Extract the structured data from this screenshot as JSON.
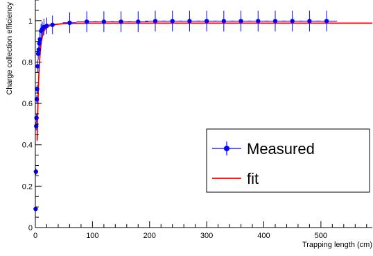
{
  "chart_data": {
    "type": "scatter",
    "xlabel": "Trapping length (cm)",
    "ylabel": "Charge collection efficiency",
    "xlim": [
      0,
      590
    ],
    "ylim": [
      0,
      1.1
    ],
    "x_ticks": [
      0,
      100,
      200,
      300,
      400,
      500
    ],
    "y_ticks": [
      0,
      0.2,
      0.4,
      0.6,
      0.8,
      1
    ],
    "x_tick_labels": [
      "0",
      "100",
      "200",
      "300",
      "400",
      "500"
    ],
    "y_tick_labels": [
      "0",
      "0.2",
      "0.4",
      "0.6",
      "0.8",
      "1"
    ],
    "grid": false,
    "legend_position": "right-middle",
    "series": [
      {
        "name": "Measured",
        "kind": "points-with-error-bars",
        "color": "#0000ff",
        "points": [
          {
            "x": 0.5,
            "y": 0.09,
            "xerr": 0.5,
            "yerr": 0.01
          },
          {
            "x": 1,
            "y": 0.27,
            "xerr": 0.5,
            "yerr": 0.015
          },
          {
            "x": 1.5,
            "y": 0.49,
            "xerr": 0.5,
            "yerr": 0.02
          },
          {
            "x": 2,
            "y": 0.53,
            "xerr": 0.5,
            "yerr": 0.02
          },
          {
            "x": 2.5,
            "y": 0.62,
            "xerr": 0.5,
            "yerr": 0.02
          },
          {
            "x": 3,
            "y": 0.67,
            "xerr": 0.5,
            "yerr": 0.02
          },
          {
            "x": 4,
            "y": 0.78,
            "xerr": 1,
            "yerr": 0.03
          },
          {
            "x": 5,
            "y": 0.84,
            "xerr": 1,
            "yerr": 0.03
          },
          {
            "x": 6,
            "y": 0.86,
            "xerr": 1,
            "yerr": 0.03
          },
          {
            "x": 7,
            "y": 0.89,
            "xerr": 1,
            "yerr": 0.03
          },
          {
            "x": 8,
            "y": 0.91,
            "xerr": 1,
            "yerr": 0.03
          },
          {
            "x": 10,
            "y": 0.95,
            "xerr": 2,
            "yerr": 0.035
          },
          {
            "x": 12,
            "y": 0.96,
            "xerr": 2,
            "yerr": 0.035
          },
          {
            "x": 15,
            "y": 0.97,
            "xerr": 3,
            "yerr": 0.04
          },
          {
            "x": 20,
            "y": 0.975,
            "xerr": 4,
            "yerr": 0.04
          },
          {
            "x": 30,
            "y": 0.98,
            "xerr": 6,
            "yerr": 0.045
          },
          {
            "x": 60,
            "y": 0.99,
            "xerr": 12,
            "yerr": 0.05
          },
          {
            "x": 90,
            "y": 0.995,
            "xerr": 18,
            "yerr": 0.05
          },
          {
            "x": 120,
            "y": 0.995,
            "xerr": 18,
            "yerr": 0.05
          },
          {
            "x": 150,
            "y": 0.995,
            "xerr": 18,
            "yerr": 0.05
          },
          {
            "x": 180,
            "y": 0.995,
            "xerr": 18,
            "yerr": 0.05
          },
          {
            "x": 210,
            "y": 0.998,
            "xerr": 18,
            "yerr": 0.05
          },
          {
            "x": 240,
            "y": 0.998,
            "xerr": 18,
            "yerr": 0.05
          },
          {
            "x": 270,
            "y": 0.998,
            "xerr": 18,
            "yerr": 0.05
          },
          {
            "x": 300,
            "y": 0.998,
            "xerr": 18,
            "yerr": 0.05
          },
          {
            "x": 330,
            "y": 0.998,
            "xerr": 18,
            "yerr": 0.05
          },
          {
            "x": 360,
            "y": 0.998,
            "xerr": 18,
            "yerr": 0.05
          },
          {
            "x": 390,
            "y": 0.998,
            "xerr": 18,
            "yerr": 0.05
          },
          {
            "x": 420,
            "y": 0.998,
            "xerr": 18,
            "yerr": 0.05
          },
          {
            "x": 450,
            "y": 0.998,
            "xerr": 18,
            "yerr": 0.05
          },
          {
            "x": 480,
            "y": 0.998,
            "xerr": 18,
            "yerr": 0.05
          },
          {
            "x": 510,
            "y": 0.998,
            "xerr": 18,
            "yerr": 0.05
          }
        ]
      },
      {
        "name": "fit",
        "kind": "line",
        "color": "#ff0000",
        "curve": [
          [
            3.2,
            0.42
          ],
          [
            4,
            0.55
          ],
          [
            5,
            0.65
          ],
          [
            6,
            0.73
          ],
          [
            7,
            0.79
          ],
          [
            8,
            0.83
          ],
          [
            10,
            0.89
          ],
          [
            12,
            0.92
          ],
          [
            15,
            0.95
          ],
          [
            20,
            0.97
          ],
          [
            30,
            0.98
          ],
          [
            45,
            0.985
          ],
          [
            60,
            0.987
          ],
          [
            100,
            0.988
          ],
          [
            200,
            0.988
          ],
          [
            300,
            0.988
          ],
          [
            400,
            0.988
          ],
          [
            500,
            0.988
          ],
          [
            590,
            0.988
          ]
        ]
      }
    ],
    "legend": [
      {
        "label": "Measured",
        "color": "#0000ff",
        "marker": "point-with-bar"
      },
      {
        "label": "fit",
        "color": "#ff0000",
        "marker": "line"
      }
    ]
  }
}
